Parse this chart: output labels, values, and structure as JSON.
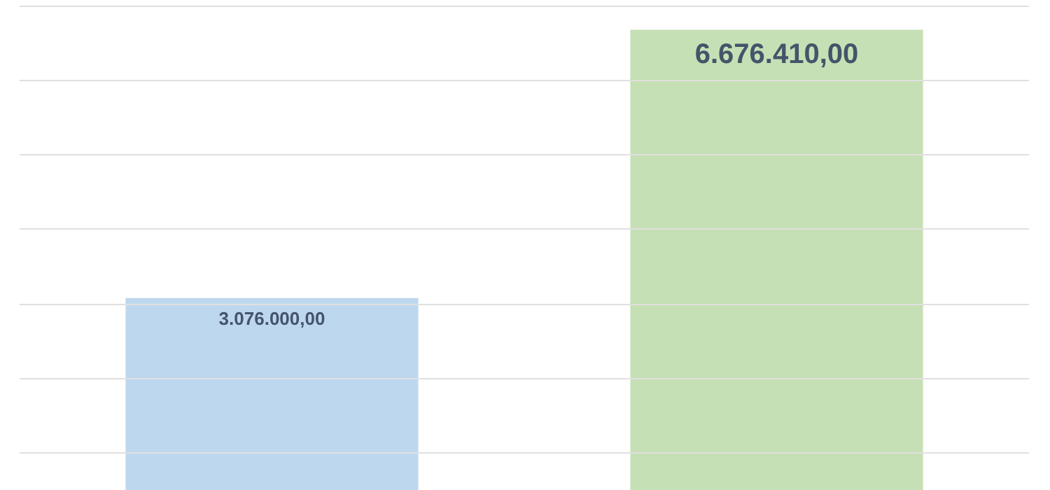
{
  "chart_data": {
    "type": "bar",
    "categories": [
      null,
      null
    ],
    "values": [
      3076000,
      6676410
    ],
    "colors": [
      "#bdd7ee",
      "#c5e0b4"
    ],
    "value_labels": [
      "3.076.000,00",
      "6.676.410,00"
    ],
    "ylim": [
      500000,
      7000000
    ],
    "yticks": [
      {
        "value": 1000000,
        "label": null
      },
      {
        "value": 2000000,
        "label": null
      },
      {
        "value": 3000000,
        "label": null
      },
      {
        "value": 4000000,
        "label": null
      },
      {
        "value": 5000000,
        "label": null
      },
      {
        "value": 6000000,
        "label": null
      },
      {
        "value": 7000000,
        "label": null
      }
    ],
    "grid": true,
    "tick_labels": false
  }
}
